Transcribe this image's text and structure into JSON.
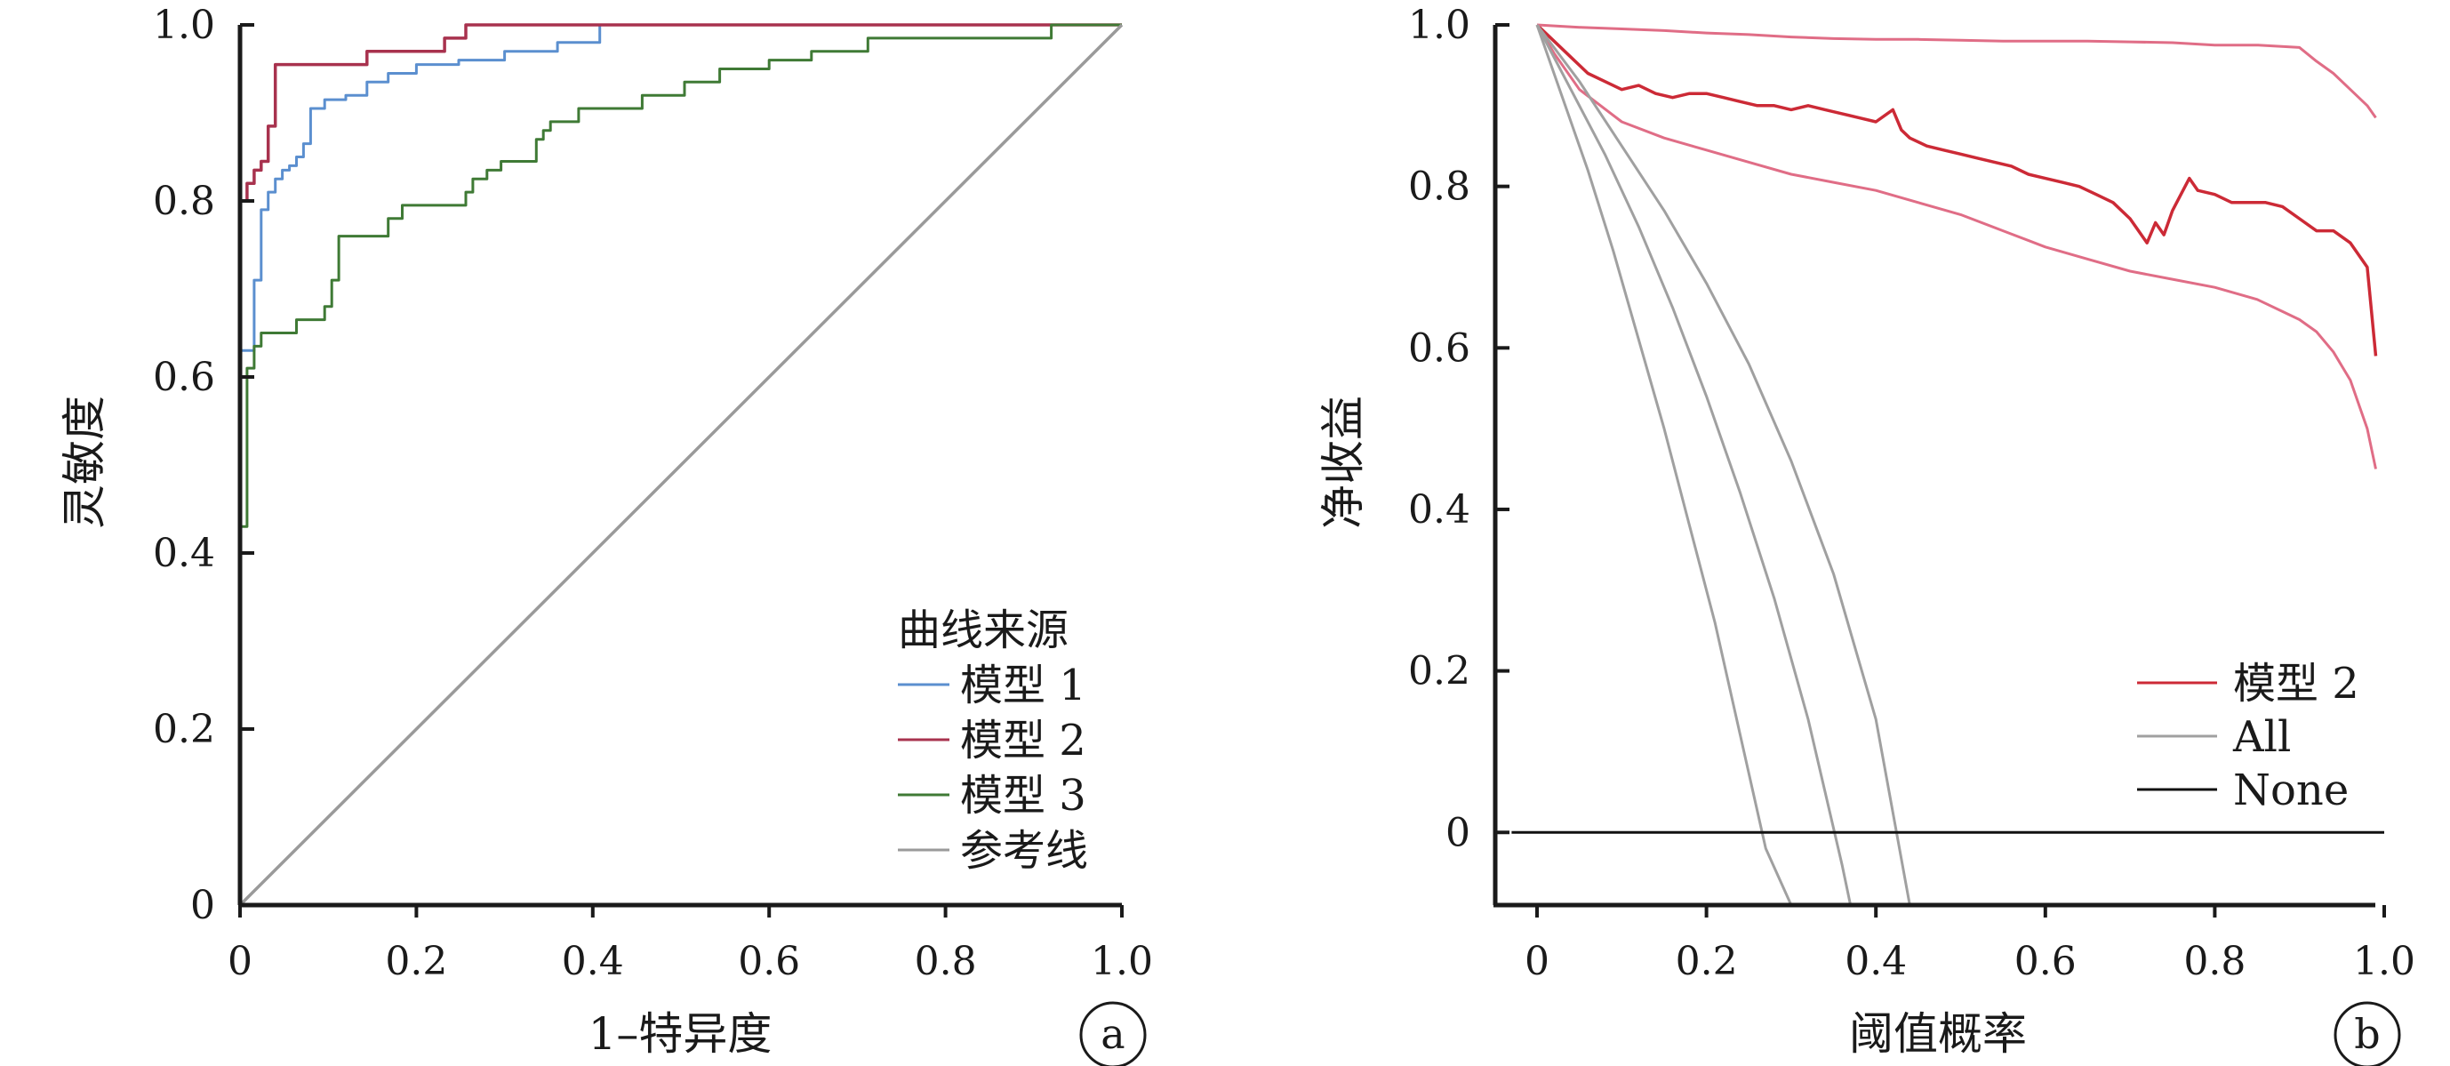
{
  "chart_data": [
    {
      "type": "line",
      "panel_label": "a",
      "xlabel": "1–特异度",
      "ylabel": "灵敏度",
      "xlim": [
        0,
        1
      ],
      "ylim": [
        0,
        1
      ],
      "xticks": [
        "0",
        "0.2",
        "0.4",
        "0.6",
        "0.8",
        "1.0"
      ],
      "yticks": [
        "0",
        "0.2",
        "0.4",
        "0.6",
        "0.8",
        "1.0"
      ],
      "legend_title": "曲线来源",
      "legend_position": "bottom-right",
      "grid": false,
      "series": [
        {
          "name": "模型 1",
          "color": "#5b8fcf",
          "x": [
            0,
            0,
            0.016,
            0.016,
            0.024,
            0.024,
            0.032,
            0.032,
            0.04,
            0.04,
            0.048,
            0.048,
            0.056,
            0.056,
            0.064,
            0.064,
            0.072,
            0.072,
            0.08,
            0.08,
            0.096,
            0.096,
            0.12,
            0.12,
            0.144,
            0.144,
            0.168,
            0.168,
            0.2,
            0.2,
            0.248,
            0.248,
            0.3,
            0.3,
            0.36,
            0.36,
            0.408,
            0.408,
            1.0
          ],
          "y": [
            0,
            0.63,
            0.63,
            0.71,
            0.71,
            0.79,
            0.79,
            0.81,
            0.81,
            0.825,
            0.825,
            0.835,
            0.835,
            0.84,
            0.84,
            0.85,
            0.85,
            0.865,
            0.865,
            0.905,
            0.905,
            0.915,
            0.915,
            0.92,
            0.92,
            0.935,
            0.935,
            0.945,
            0.945,
            0.955,
            0.955,
            0.96,
            0.96,
            0.97,
            0.97,
            0.98,
            0.98,
            1.0,
            1.0
          ]
        },
        {
          "name": "模型 2",
          "color": "#a8324e",
          "x": [
            0,
            0,
            0.008,
            0.008,
            0.016,
            0.016,
            0.024,
            0.024,
            0.032,
            0.032,
            0.04,
            0.04,
            0.072,
            0.072,
            0.144,
            0.144,
            0.232,
            0.232,
            0.256,
            0.256,
            1.0
          ],
          "y": [
            0,
            0.8,
            0.8,
            0.82,
            0.82,
            0.835,
            0.835,
            0.845,
            0.845,
            0.885,
            0.885,
            0.955,
            0.955,
            0.955,
            0.955,
            0.97,
            0.97,
            0.985,
            0.985,
            1.0,
            1.0
          ]
        },
        {
          "name": "模型 3",
          "color": "#3f7a35",
          "x": [
            0,
            0,
            0.008,
            0.008,
            0.016,
            0.016,
            0.024,
            0.024,
            0.064,
            0.064,
            0.096,
            0.096,
            0.104,
            0.104,
            0.112,
            0.112,
            0.168,
            0.168,
            0.184,
            0.184,
            0.256,
            0.256,
            0.264,
            0.264,
            0.28,
            0.28,
            0.296,
            0.296,
            0.336,
            0.336,
            0.344,
            0.344,
            0.352,
            0.352,
            0.384,
            0.384,
            0.456,
            0.456,
            0.504,
            0.504,
            0.544,
            0.544,
            0.6,
            0.6,
            0.648,
            0.648,
            0.712,
            0.712,
            0.92,
            0.92,
            1.0
          ],
          "y": [
            0,
            0.43,
            0.43,
            0.61,
            0.61,
            0.635,
            0.635,
            0.65,
            0.65,
            0.665,
            0.665,
            0.68,
            0.68,
            0.71,
            0.71,
            0.76,
            0.76,
            0.78,
            0.78,
            0.795,
            0.795,
            0.81,
            0.81,
            0.825,
            0.825,
            0.835,
            0.835,
            0.845,
            0.845,
            0.87,
            0.87,
            0.88,
            0.88,
            0.89,
            0.89,
            0.905,
            0.905,
            0.92,
            0.92,
            0.935,
            0.935,
            0.95,
            0.95,
            0.96,
            0.96,
            0.97,
            0.97,
            0.985,
            0.985,
            1.0,
            1.0
          ]
        },
        {
          "name": "参考线",
          "color": "#9a9a9a",
          "x": [
            0,
            1
          ],
          "y": [
            0,
            1
          ]
        }
      ]
    },
    {
      "type": "line",
      "panel_label": "b",
      "xlabel": "阈值概率",
      "ylabel": "净收益",
      "xlim": [
        0,
        1
      ],
      "ylim": [
        -0.09,
        1
      ],
      "xticks": [
        "0",
        "0.2",
        "0.4",
        "0.6",
        "0.8",
        "1.0"
      ],
      "yticks": [
        "0",
        "0.2",
        "0.4",
        "0.6",
        "0.8",
        "1.0"
      ],
      "legend_position": "right",
      "grid": false,
      "series": [
        {
          "name": "模型 2",
          "color": "#cc2a36",
          "x": [
            0,
            0.02,
            0.04,
            0.06,
            0.08,
            0.1,
            0.12,
            0.14,
            0.16,
            0.18,
            0.2,
            0.22,
            0.24,
            0.26,
            0.28,
            0.3,
            0.32,
            0.34,
            0.36,
            0.38,
            0.4,
            0.42,
            0.43,
            0.44,
            0.46,
            0.48,
            0.5,
            0.52,
            0.54,
            0.56,
            0.58,
            0.6,
            0.62,
            0.64,
            0.66,
            0.68,
            0.7,
            0.72,
            0.73,
            0.74,
            0.75,
            0.76,
            0.77,
            0.78,
            0.8,
            0.82,
            0.84,
            0.86,
            0.88,
            0.9,
            0.92,
            0.94,
            0.96,
            0.98,
            0.99
          ],
          "y": [
            1.0,
            0.98,
            0.96,
            0.94,
            0.93,
            0.92,
            0.925,
            0.915,
            0.91,
            0.915,
            0.915,
            0.91,
            0.905,
            0.9,
            0.9,
            0.895,
            0.9,
            0.895,
            0.89,
            0.885,
            0.88,
            0.895,
            0.87,
            0.86,
            0.85,
            0.845,
            0.84,
            0.835,
            0.83,
            0.825,
            0.815,
            0.81,
            0.805,
            0.8,
            0.79,
            0.78,
            0.76,
            0.73,
            0.755,
            0.74,
            0.77,
            0.79,
            0.81,
            0.795,
            0.79,
            0.78,
            0.78,
            0.78,
            0.775,
            0.76,
            0.745,
            0.745,
            0.73,
            0.7,
            0.59
          ]
        },
        {
          "name": "",
          "color": "#e06d86",
          "x": [
            0,
            0.05,
            0.1,
            0.15,
            0.2,
            0.25,
            0.3,
            0.35,
            0.4,
            0.45,
            0.5,
            0.55,
            0.6,
            0.65,
            0.7,
            0.75,
            0.8,
            0.85,
            0.9,
            0.92,
            0.94,
            0.96,
            0.98,
            0.99
          ],
          "y": [
            1.0,
            0.997,
            0.995,
            0.993,
            0.99,
            0.988,
            0.985,
            0.983,
            0.982,
            0.982,
            0.981,
            0.98,
            0.98,
            0.98,
            0.979,
            0.978,
            0.975,
            0.975,
            0.972,
            0.955,
            0.94,
            0.92,
            0.9,
            0.885
          ]
        },
        {
          "name": "",
          "color": "#e06d86",
          "x": [
            0,
            0.02,
            0.05,
            0.1,
            0.15,
            0.2,
            0.25,
            0.3,
            0.35,
            0.4,
            0.45,
            0.5,
            0.55,
            0.6,
            0.65,
            0.7,
            0.75,
            0.8,
            0.85,
            0.88,
            0.9,
            0.92,
            0.94,
            0.96,
            0.98,
            0.99
          ],
          "y": [
            1.0,
            0.965,
            0.92,
            0.88,
            0.86,
            0.845,
            0.83,
            0.815,
            0.805,
            0.795,
            0.78,
            0.765,
            0.745,
            0.725,
            0.71,
            0.695,
            0.685,
            0.675,
            0.66,
            0.645,
            0.635,
            0.62,
            0.595,
            0.56,
            0.5,
            0.45
          ]
        },
        {
          "name": "All",
          "color": "#a0a0a0",
          "x": [
            0,
            0.03,
            0.06,
            0.09,
            0.12,
            0.15,
            0.18,
            0.21,
            0.24,
            0.27,
            0.3
          ],
          "y": [
            1.0,
            0.91,
            0.82,
            0.72,
            0.61,
            0.5,
            0.38,
            0.26,
            0.12,
            -0.02,
            -0.09
          ]
        },
        {
          "name": "",
          "color": "#a0a0a0",
          "x": [
            0,
            0.04,
            0.08,
            0.12,
            0.16,
            0.2,
            0.24,
            0.28,
            0.32,
            0.36,
            0.37
          ],
          "y": [
            1.0,
            0.92,
            0.84,
            0.75,
            0.65,
            0.54,
            0.42,
            0.29,
            0.14,
            -0.04,
            -0.09
          ]
        },
        {
          "name": "",
          "color": "#a0a0a0",
          "x": [
            0,
            0.05,
            0.1,
            0.15,
            0.2,
            0.25,
            0.3,
            0.35,
            0.4,
            0.44
          ],
          "y": [
            1.0,
            0.93,
            0.85,
            0.77,
            0.68,
            0.58,
            0.46,
            0.32,
            0.14,
            -0.09
          ]
        },
        {
          "name": "None",
          "color": "#111111",
          "x": [
            -0.03,
            1.0
          ],
          "y": [
            0,
            0
          ]
        }
      ]
    }
  ]
}
